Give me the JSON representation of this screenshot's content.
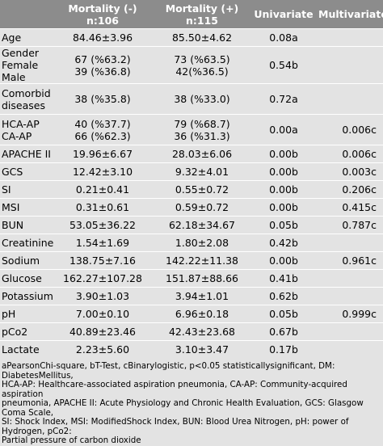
{
  "table": {
    "headers": {
      "c0": "",
      "c1_l1": "Mortality (-)",
      "c1_l2": "n:106",
      "c2_l1": "Mortality (+)",
      "c2_l2": "n:115",
      "c3": "Univariate",
      "c4": "Multivariate"
    },
    "rows": [
      {
        "label": [
          "Age"
        ],
        "c1": [
          "84.46±3.96"
        ],
        "c2": [
          "85.50±4.62"
        ],
        "uni": "0.08a",
        "multi": ""
      },
      {
        "label": [
          "Gender",
          "Female",
          "Male"
        ],
        "c1": [
          "67 (%63.2)",
          "39 (%36.8)"
        ],
        "c2": [
          "73 (%63.5)",
          "42(%36.5)"
        ],
        "uni": "0.54b",
        "multi": ""
      },
      {
        "label": [
          "Comorbid",
          "diseases"
        ],
        "c1": [
          "38 (%35.8)"
        ],
        "c2": [
          "38 (%33.0)"
        ],
        "uni": "0.72a",
        "multi": ""
      },
      {
        "label": [
          "HCA-AP",
          "CA-AP"
        ],
        "c1": [
          "40 (%37.7)",
          "66 (%62.3)"
        ],
        "c2": [
          "79 (%68.7)",
          "36 (%31.3)"
        ],
        "uni": "0.00a",
        "multi": "0.006c"
      },
      {
        "label": [
          "APACHE II"
        ],
        "c1": [
          "19.96±6.67"
        ],
        "c2": [
          "28.03±6.06"
        ],
        "uni": "0.00b",
        "multi": "0.006c"
      },
      {
        "label": [
          "GCS"
        ],
        "c1": [
          "12.42±3.10"
        ],
        "c2": [
          "9.32±4.01"
        ],
        "uni": "0.00b",
        "multi": "0.003c"
      },
      {
        "label": [
          "SI"
        ],
        "c1": [
          "0.21±0.41"
        ],
        "c2": [
          "0.55±0.72"
        ],
        "uni": "0.00b",
        "multi": "0.206c"
      },
      {
        "label": [
          "MSI"
        ],
        "c1": [
          "0.31±0.61"
        ],
        "c2": [
          "0.59±0.72"
        ],
        "uni": "0.00b",
        "multi": "0.415c"
      },
      {
        "label": [
          "BUN"
        ],
        "c1": [
          "53.05±36.22"
        ],
        "c2": [
          "62.18±34.67"
        ],
        "uni": "0.05b",
        "multi": "0.787c"
      },
      {
        "label": [
          "Creatinine"
        ],
        "c1": [
          "1.54±1.69"
        ],
        "c2": [
          "1.80±2.08"
        ],
        "uni": "0.42b",
        "multi": ""
      },
      {
        "label": [
          "Sodium"
        ],
        "c1": [
          "138.75±7.16"
        ],
        "c2": [
          "142.22±11.38"
        ],
        "uni": "0.00b",
        "multi": "0.961c"
      },
      {
        "label": [
          "Glucose"
        ],
        "c1": [
          "162.27±107.28"
        ],
        "c2": [
          "151.87±88.66"
        ],
        "uni": "0.41b",
        "multi": ""
      },
      {
        "label": [
          "Potassium"
        ],
        "c1": [
          "3.90±1.03"
        ],
        "c2": [
          "3.94±1.01"
        ],
        "uni": "0.62b",
        "multi": ""
      },
      {
        "label": [
          "pH"
        ],
        "c1": [
          "7.00±0.10"
        ],
        "c2": [
          "6.96±0.18"
        ],
        "uni": "0.05b",
        "multi": "0.999c"
      },
      {
        "label": [
          "pCo2"
        ],
        "c1": [
          "40.89±23.46"
        ],
        "c2": [
          "42.43±23.68"
        ],
        "uni": "0.67b",
        "multi": ""
      },
      {
        "label": [
          "Lactate"
        ],
        "c1": [
          "2.23±5.60"
        ],
        "c2": [
          "3.10±3.47"
        ],
        "uni": "0.17b",
        "multi": ""
      }
    ]
  },
  "notes": [
    "aPearsonChi-square, bT-Test, cBinarylogistic, p<0.05 statisticallysignificant, DM: DiabetesMellitus,",
    "HCA-AP: Healthcare-associated aspiration pneumonia, CA-AP: Community-acquired aspiration",
    "pneumonia, APACHE II: Acute Physiology and Chronic Health Evaluation, GCS: Glasgow Coma Scale,",
    "SI: Shock Index, MSI: ModifiedShock Index, BUN: Blood Urea Nitrogen, pH: power of Hydrogen, pCo2:",
    "Partial pressure of carbon dioxide"
  ]
}
